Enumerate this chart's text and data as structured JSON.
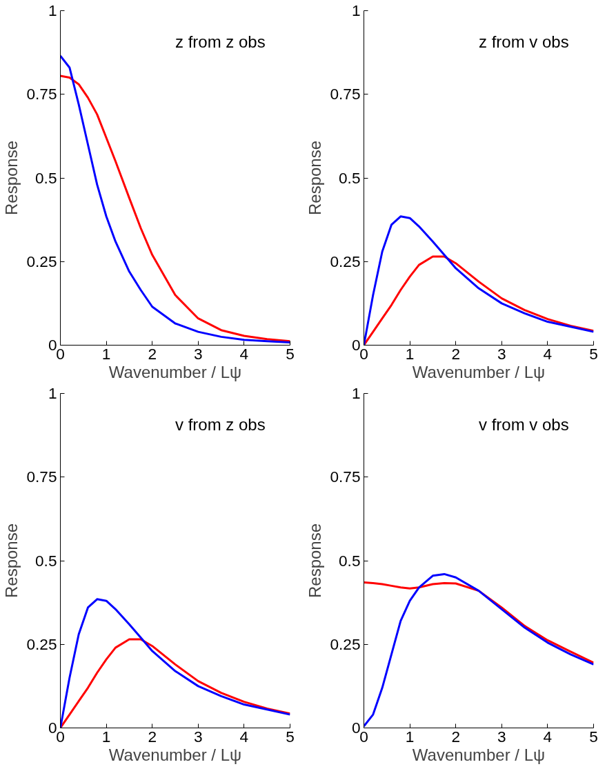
{
  "chart_data": [
    {
      "type": "line",
      "title": "z from z obs",
      "xlabel": "Wavenumber / Lψ",
      "ylabel": "Response",
      "xlim": [
        0,
        5
      ],
      "ylim": [
        0,
        1
      ],
      "xticks": [
        0,
        1,
        2,
        3,
        4,
        5
      ],
      "yticks": [
        0,
        0.25,
        0.5,
        0.75,
        1
      ],
      "x": [
        0,
        0.2,
        0.4,
        0.6,
        0.8,
        1,
        1.2,
        1.5,
        1.75,
        2,
        2.5,
        3,
        3.5,
        4,
        4.5,
        5
      ],
      "series": [
        {
          "color": "#ff0000",
          "values": [
            0.805,
            0.8,
            0.78,
            0.74,
            0.69,
            0.62,
            0.55,
            0.44,
            0.35,
            0.27,
            0.15,
            0.08,
            0.045,
            0.028,
            0.018,
            0.012
          ]
        },
        {
          "color": "#0000ff",
          "values": [
            0.865,
            0.83,
            0.72,
            0.6,
            0.48,
            0.385,
            0.31,
            0.22,
            0.165,
            0.115,
            0.065,
            0.04,
            0.025,
            0.016,
            0.012,
            0.008
          ]
        }
      ]
    },
    {
      "type": "line",
      "title": "z from v obs",
      "xlabel": "Wavenumber / Lψ",
      "ylabel": "Response",
      "xlim": [
        0,
        5
      ],
      "ylim": [
        0,
        1
      ],
      "xticks": [
        0,
        1,
        2,
        3,
        4,
        5
      ],
      "yticks": [
        0,
        0.25,
        0.5,
        0.75,
        1
      ],
      "x": [
        0,
        0.2,
        0.4,
        0.6,
        0.8,
        1,
        1.2,
        1.5,
        1.75,
        2,
        2.5,
        3,
        3.5,
        4,
        4.5,
        5
      ],
      "series": [
        {
          "color": "#ff0000",
          "values": [
            0,
            0.04,
            0.08,
            0.12,
            0.165,
            0.205,
            0.24,
            0.265,
            0.265,
            0.245,
            0.19,
            0.14,
            0.105,
            0.078,
            0.058,
            0.043
          ]
        },
        {
          "color": "#0000ff",
          "values": [
            0,
            0.15,
            0.28,
            0.36,
            0.385,
            0.38,
            0.355,
            0.31,
            0.27,
            0.23,
            0.17,
            0.125,
            0.095,
            0.07,
            0.055,
            0.04
          ]
        }
      ]
    },
    {
      "type": "line",
      "title": "v from z obs",
      "xlabel": "Wavenumber / Lψ",
      "ylabel": "Response",
      "xlim": [
        0,
        5
      ],
      "ylim": [
        0,
        1
      ],
      "xticks": [
        0,
        1,
        2,
        3,
        4,
        5
      ],
      "yticks": [
        0,
        0.25,
        0.5,
        0.75,
        1
      ],
      "x": [
        0,
        0.2,
        0.4,
        0.6,
        0.8,
        1,
        1.2,
        1.5,
        1.75,
        2,
        2.5,
        3,
        3.5,
        4,
        4.5,
        5
      ],
      "series": [
        {
          "color": "#ff0000",
          "values": [
            0,
            0.04,
            0.08,
            0.12,
            0.165,
            0.205,
            0.24,
            0.265,
            0.265,
            0.245,
            0.19,
            0.14,
            0.105,
            0.078,
            0.058,
            0.043
          ]
        },
        {
          "color": "#0000ff",
          "values": [
            0,
            0.15,
            0.28,
            0.36,
            0.385,
            0.38,
            0.355,
            0.31,
            0.27,
            0.23,
            0.17,
            0.125,
            0.095,
            0.07,
            0.055,
            0.04
          ]
        }
      ]
    },
    {
      "type": "line",
      "title": "v from v obs",
      "xlabel": "Wavenumber / Lψ",
      "ylabel": "Response",
      "xlim": [
        0,
        5
      ],
      "ylim": [
        0,
        1
      ],
      "xticks": [
        0,
        1,
        2,
        3,
        4,
        5
      ],
      "yticks": [
        0,
        0.25,
        0.5,
        0.75,
        1
      ],
      "x": [
        0,
        0.2,
        0.4,
        0.6,
        0.8,
        1,
        1.2,
        1.5,
        1.75,
        2,
        2.5,
        3,
        3.5,
        4,
        4.5,
        5
      ],
      "series": [
        {
          "color": "#ff0000",
          "values": [
            0.435,
            0.433,
            0.43,
            0.425,
            0.42,
            0.417,
            0.42,
            0.43,
            0.433,
            0.432,
            0.41,
            0.36,
            0.305,
            0.262,
            0.228,
            0.195
          ]
        },
        {
          "color": "#0000ff",
          "values": [
            0.005,
            0.04,
            0.12,
            0.22,
            0.32,
            0.38,
            0.42,
            0.455,
            0.46,
            0.45,
            0.41,
            0.355,
            0.3,
            0.255,
            0.22,
            0.19
          ]
        }
      ]
    }
  ]
}
